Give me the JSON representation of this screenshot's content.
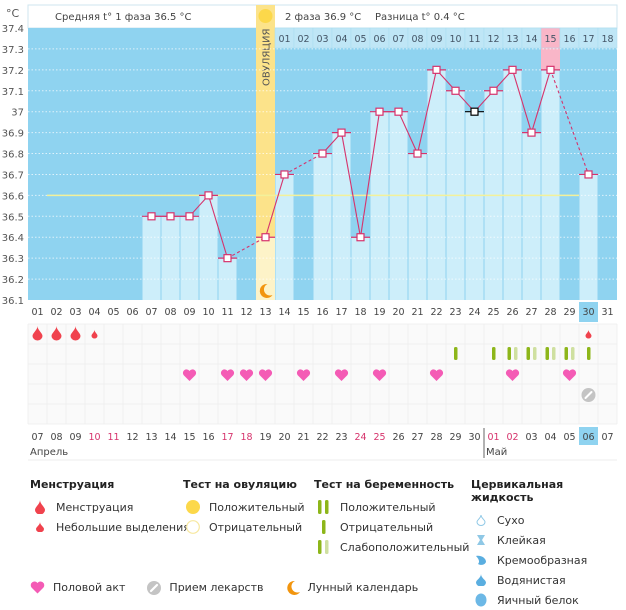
{
  "header": {
    "unit_label": "°C",
    "phase1_text": "Средняя t° 1 фаза 36.5 °C",
    "phase2_text": "2 фаза 36.9 °C",
    "diff_text": "Разница t° 0.4 °C",
    "ovulation_label": "ОВУЛЯЦИЯ"
  },
  "colors": {
    "plot_bg": "#8fd3f0",
    "bar": "#cdeefa",
    "line": "#d6336c",
    "ovulation": "#fce38a",
    "luteal_highlight": "#f9b6c8",
    "coverline": "#f3f19a",
    "today": "#8fd3f0",
    "holiday": "#d6336c",
    "pregnancy_pos": "#8db61a",
    "pregnancy_weak": "#cfe0a0",
    "heart": "#f45bb5",
    "blood": "#f0424d",
    "pill": "#c4c4c4",
    "moon": "#f2950e",
    "sun": "#fcd84a"
  },
  "chart_data": {
    "type": "bar",
    "title": "",
    "xlabel": "",
    "ylabel": "°C",
    "ylim": [
      36.1,
      37.4
    ],
    "yticks": [
      "37.4",
      "37.3",
      "37.2",
      "37.1",
      "37",
      "36.9",
      "36.8",
      "36.7",
      "36.6",
      "36.5",
      "36.4",
      "36.3",
      "36.2",
      "36.1"
    ],
    "cycle_days": [
      "01",
      "02",
      "03",
      "04",
      "05",
      "06",
      "07",
      "08",
      "09",
      "10",
      "11",
      "12",
      "13",
      "14",
      "15",
      "16",
      "17",
      "18",
      "19",
      "20",
      "21",
      "22",
      "23",
      "24",
      "25",
      "26",
      "27",
      "28",
      "29",
      "30",
      "31"
    ],
    "luteal_days": [
      "01",
      "02",
      "03",
      "04",
      "05",
      "06",
      "07",
      "08",
      "09",
      "10",
      "11",
      "12",
      "13",
      "14",
      "15",
      "16",
      "17",
      "18"
    ],
    "ovulation_day_index": 12,
    "luteal_start_index": 13,
    "luteal_highlight_index": 27,
    "coverline": 36.6,
    "temperatures": [
      null,
      null,
      null,
      null,
      null,
      null,
      36.5,
      36.5,
      36.5,
      36.6,
      36.3,
      null,
      36.4,
      36.7,
      null,
      36.8,
      36.9,
      36.4,
      37.0,
      37.0,
      36.8,
      37.2,
      37.1,
      37.0,
      37.1,
      37.2,
      36.9,
      37.2,
      null,
      36.7,
      null
    ],
    "highlighted_point_index": 23,
    "today_index": 29,
    "calendar_dates": [
      "07",
      "08",
      "09",
      "10",
      "11",
      "12",
      "13",
      "14",
      "15",
      "16",
      "17",
      "18",
      "19",
      "20",
      "21",
      "22",
      "23",
      "24",
      "25",
      "26",
      "27",
      "28",
      "29",
      "30",
      "01",
      "02",
      "03",
      "04",
      "05",
      "06",
      "07"
    ],
    "holiday_indices": [
      3,
      4,
      10,
      11,
      17,
      18,
      24,
      25
    ],
    "month_labels": [
      {
        "label": "Апрель",
        "index": 0
      },
      {
        "label": "Май",
        "index": 24
      }
    ],
    "menstruation": {
      "heavy": [
        0,
        1,
        2
      ],
      "spotting": [
        3,
        29
      ]
    },
    "pregnancy_tests": [
      {
        "index": 22,
        "type": "negative"
      },
      {
        "index": 24,
        "type": "negative"
      },
      {
        "index": 25,
        "type": "weak"
      },
      {
        "index": 26,
        "type": "weak"
      },
      {
        "index": 27,
        "type": "weak"
      },
      {
        "index": 28,
        "type": "weak"
      },
      {
        "index": 29,
        "type": "negative"
      }
    ],
    "intercourse": [
      8,
      10,
      11,
      12,
      14,
      16,
      18,
      21,
      25,
      28
    ],
    "medication": [
      29
    ],
    "moon": [
      12
    ]
  },
  "legend": {
    "menstruation": {
      "title": "Менструация",
      "items": [
        "Менструация",
        "Небольшие выделения"
      ]
    },
    "ovulation_test": {
      "title": "Тест на овуляцию",
      "items": [
        "Положительный",
        "Отрицательный"
      ]
    },
    "pregnancy_test": {
      "title": "Тест на беременность",
      "items": [
        "Положительный",
        "Отрицательный",
        "Слабоположительный"
      ]
    },
    "cervical": {
      "title": "Цервикальная жидкость",
      "items": [
        "Сухо",
        "Клейкая",
        "Кремообразная",
        "Водянистая",
        "Яичный белок"
      ]
    },
    "bottom": [
      "Половой акт",
      "Прием лекарств",
      "Лунный календарь"
    ]
  }
}
